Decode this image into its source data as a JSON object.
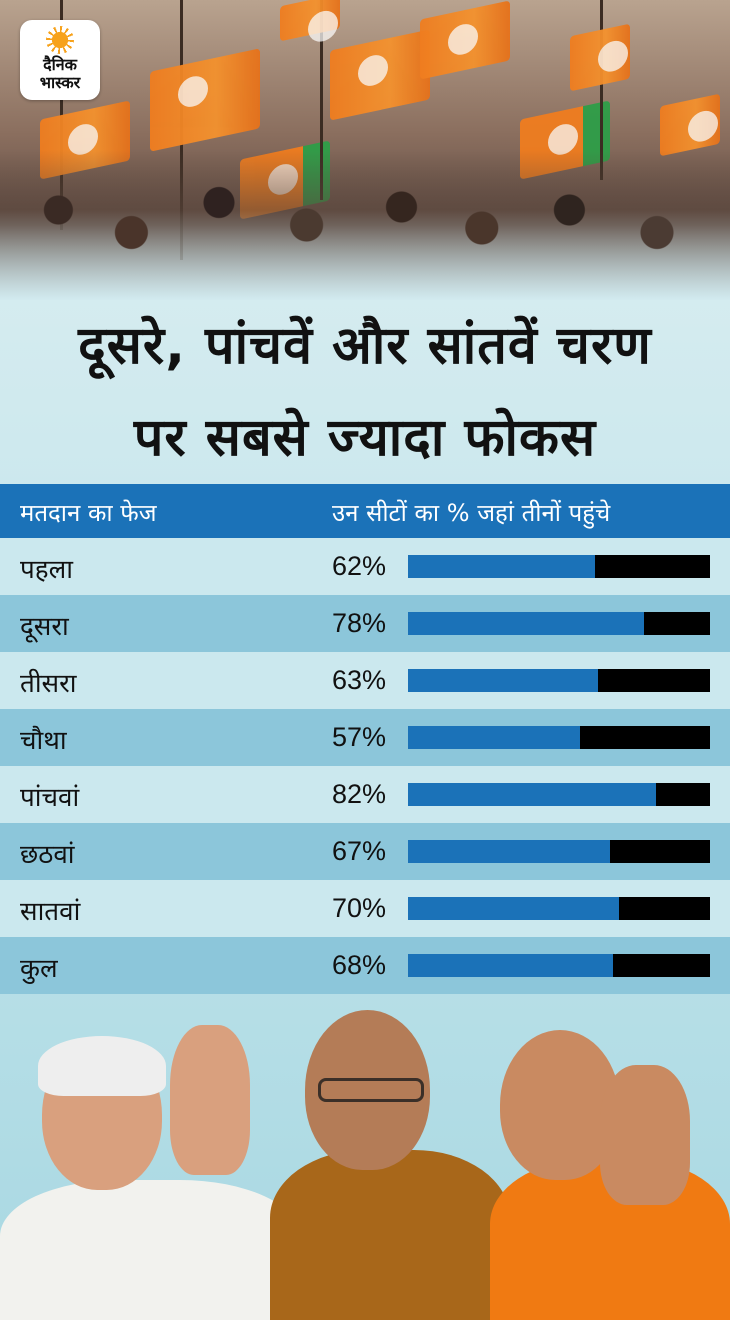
{
  "brand": {
    "line1": "दैनिक",
    "line2": "भास्कर"
  },
  "title": {
    "line1": "दूसरे, पांचवें और सांतवें चरण",
    "line2": "पर सबसे ज्यादा फोकस"
  },
  "chart_data": {
    "type": "bar",
    "columns": [
      "मतदान का फेज",
      "उन सीटों का % जहां तीनों पहुंचे"
    ],
    "categories": [
      "पहला",
      "दूसरा",
      "तीसरा",
      "चौथा",
      "पांचवां",
      "छठवां",
      "सातवां",
      "कुल"
    ],
    "values": [
      62,
      78,
      63,
      57,
      82,
      67,
      70,
      68
    ],
    "value_labels": [
      "62%",
      "78%",
      "63%",
      "57%",
      "82%",
      "67%",
      "70%",
      "68%"
    ],
    "ylim": [
      0,
      100
    ],
    "colors": {
      "fill": "#1b72b8",
      "remainder": "#000000",
      "header": "#1b72b8"
    }
  }
}
